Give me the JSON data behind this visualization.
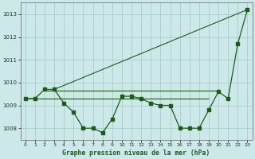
{
  "title": "Graphe pression niveau de la mer (hPa)",
  "xticks": [
    0,
    1,
    2,
    3,
    4,
    5,
    6,
    7,
    8,
    9,
    10,
    11,
    12,
    13,
    14,
    15,
    16,
    17,
    18,
    19,
    20,
    21,
    22,
    23
  ],
  "ylim": [
    1007.5,
    1013.5
  ],
  "yticks": [
    1008,
    1009,
    1010,
    1011,
    1012,
    1013
  ],
  "background_color": "#cce8e8",
  "grid_color": "#aacccc",
  "line_color": "#1a5c1a",
  "series_main": {
    "x": [
      0,
      1,
      2,
      3,
      4,
      5,
      6,
      7,
      8,
      9,
      10,
      11,
      12,
      13,
      14,
      15,
      16,
      17,
      18,
      19,
      20,
      21,
      22,
      23
    ],
    "y": [
      1009.3,
      1009.3,
      1009.7,
      1009.7,
      1009.1,
      1008.7,
      1008.0,
      1008.0,
      1007.8,
      1008.4,
      1009.4,
      1009.4,
      1009.3,
      1009.1,
      1009.0,
      1009.0,
      1008.0,
      1008.0,
      1008.0,
      1008.8,
      1009.6,
      1009.3,
      1011.7,
      1013.2
    ]
  },
  "series_trend": {
    "x": [
      3,
      23
    ],
    "y": [
      1009.7,
      1013.2
    ]
  },
  "series_flat_high": {
    "x": [
      2,
      10,
      14,
      20
    ],
    "y": [
      1009.65,
      1009.65,
      1009.65,
      1009.65
    ]
  },
  "series_flat_low": {
    "x": [
      0,
      13,
      15,
      19
    ],
    "y": [
      1009.3,
      1009.3,
      1009.3,
      1009.3
    ]
  }
}
